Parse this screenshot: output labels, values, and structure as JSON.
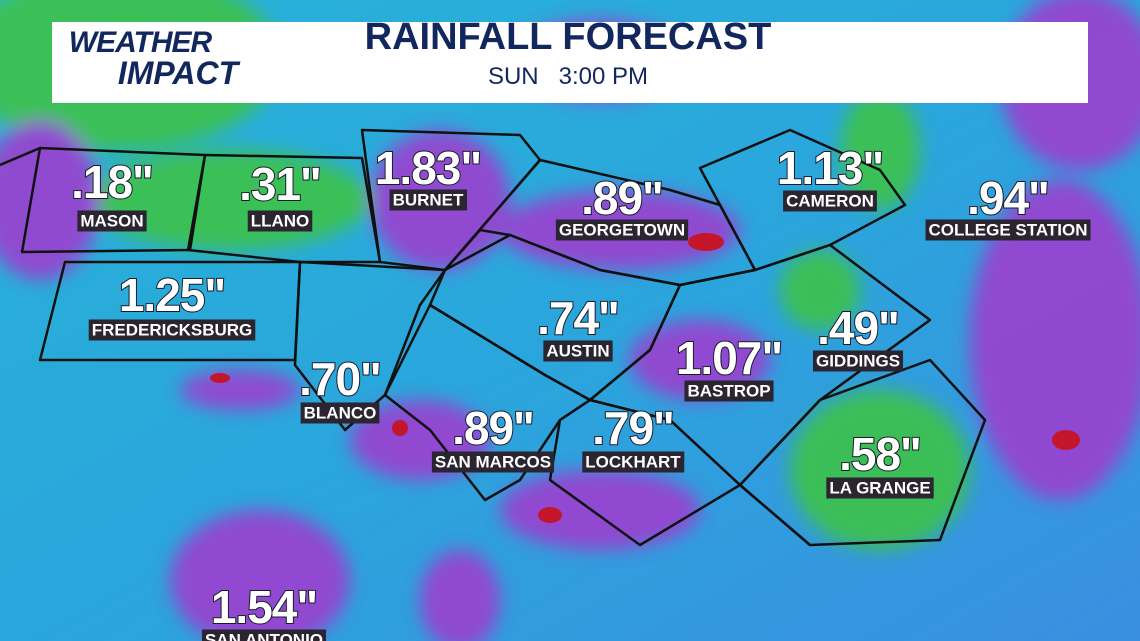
{
  "header": {
    "logo_top": "WEATHER",
    "logo_bottom": "IMPACT",
    "title": "RAINFALL FORECAST",
    "subtitle": "SUN   3:00 PM"
  },
  "cities": [
    {
      "amount": ".18\"",
      "name": "MASON"
    },
    {
      "amount": ".31\"",
      "name": "LLANO"
    },
    {
      "amount": "1.83\"",
      "name": "BURNET"
    },
    {
      "amount": ".89\"",
      "name": "GEORGETOWN"
    },
    {
      "amount": "1.13\"",
      "name": "CAMERON"
    },
    {
      "amount": ".94\"",
      "name": "COLLEGE STATION"
    },
    {
      "amount": "1.25\"",
      "name": "FREDERICKSBURG"
    },
    {
      "amount": ".74\"",
      "name": "AUSTIN"
    },
    {
      "amount": "1.07\"",
      "name": "BASTROP"
    },
    {
      "amount": ".49\"",
      "name": "GIDDINGS"
    },
    {
      "amount": ".70\"",
      "name": "BLANCO"
    },
    {
      "amount": ".89\"",
      "name": "SAN MARCOS"
    },
    {
      "amount": ".79\"",
      "name": "LOCKHART"
    },
    {
      "amount": ".58\"",
      "name": "LA GRANGE"
    },
    {
      "amount": "1.54\"",
      "name": "SAN ANTONIO"
    }
  ]
}
